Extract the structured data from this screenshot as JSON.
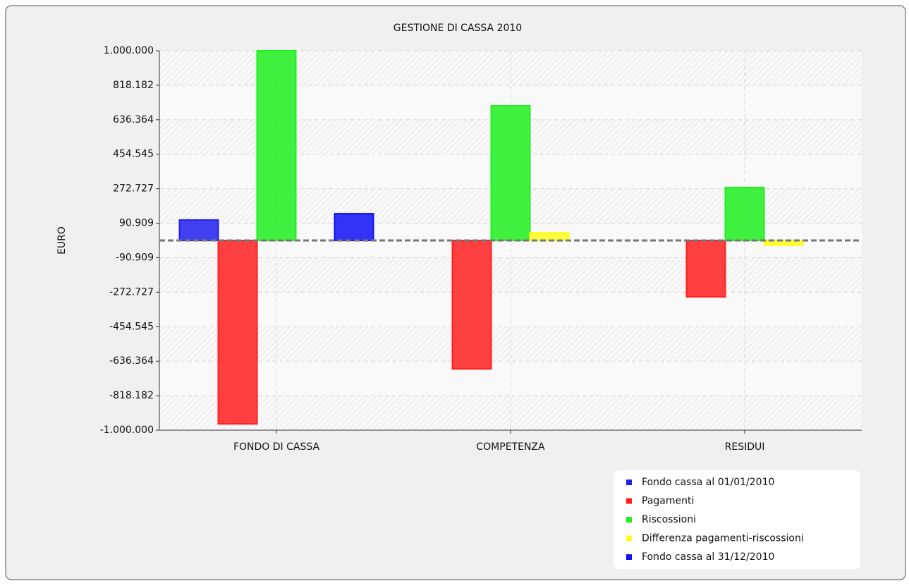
{
  "chart_data": {
    "type": "bar",
    "title": "GESTIONE DI CASSA 2010",
    "y_label": "EURO",
    "categories": [
      "FONDO DI CASSA",
      "COMPETENZA",
      "RESIDUI"
    ],
    "series": [
      {
        "name": "Fondo cassa al 01/01/2010",
        "color": "#2020f0",
        "values": [
          108000,
          0,
          0
        ]
      },
      {
        "name": "Pagamenti",
        "color": "#ff2020",
        "values": [
          -967000,
          -677000,
          -297000
        ]
      },
      {
        "name": "Riscossioni",
        "color": "#20f020",
        "values": [
          1000000,
          710000,
          279000
        ]
      },
      {
        "name": "Differenza pagamenti-riscossioni",
        "color": "#ffff20",
        "values": [
          0,
          41000,
          -26000
        ]
      },
      {
        "name": "Fondo cassa al 31/12/2010",
        "color": "#1010f8",
        "values": [
          141000,
          0,
          0
        ]
      }
    ],
    "ylim": [
      -1000000,
      1000000
    ],
    "yticks": [
      {
        "value": -1000000,
        "label": "-1.000.000"
      },
      {
        "value": -818182,
        "label": "-818.182"
      },
      {
        "value": -636364,
        "label": "-636.364"
      },
      {
        "value": -454545,
        "label": "-454.545"
      },
      {
        "value": -272727,
        "label": "-272.727"
      },
      {
        "value": -90909,
        "label": "-90.909"
      },
      {
        "value": 90909,
        "label": "90.909"
      },
      {
        "value": 272727,
        "label": "272.727"
      },
      {
        "value": 454545,
        "label": "454.545"
      },
      {
        "value": 636364,
        "label": "636.364"
      },
      {
        "value": 818182,
        "label": "818.182"
      },
      {
        "value": 1000000,
        "label": "1.000.000"
      }
    ],
    "grid": true
  }
}
